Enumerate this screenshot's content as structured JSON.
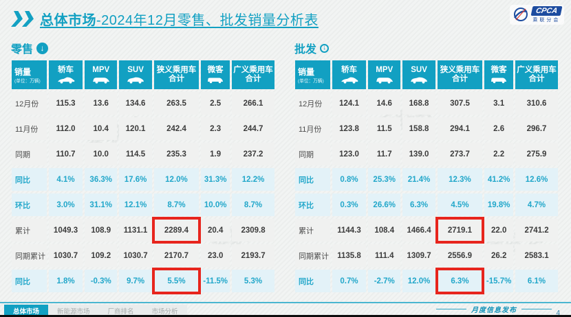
{
  "header": {
    "title_bold": "总体市场",
    "title_rest": "-2024年12月零售、批发销量分析表"
  },
  "logo": {
    "abbr": "CPCA",
    "cn": "乘联分会"
  },
  "icons": {
    "down_arrow": "↓"
  },
  "watermark": "乘联会",
  "columns": {
    "sales": {
      "label": "销量",
      "unit": "(单位：万辆)"
    },
    "cols": [
      {
        "line1": "轿车",
        "line2": "",
        "icon": "sedan-icon"
      },
      {
        "line1": "MPV",
        "line2": "",
        "icon": "mpv-icon"
      },
      {
        "line1": "SUV",
        "line2": "",
        "icon": "suv-icon"
      },
      {
        "line1": "狭义乘用车",
        "line2": "合计",
        "icon": ""
      },
      {
        "line1": "微客",
        "line2": "",
        "icon": "microvan-icon"
      },
      {
        "line1": "广义乘用车",
        "line2": "合计",
        "icon": ""
      }
    ]
  },
  "retail": {
    "section_label": "零售",
    "rows": [
      {
        "label": "12月份",
        "kind": "data",
        "values": [
          "115.3",
          "13.6",
          "134.6",
          "263.5",
          "2.5",
          "266.1"
        ]
      },
      {
        "label": "11月份",
        "kind": "data",
        "values": [
          "112.0",
          "10.4",
          "120.1",
          "242.4",
          "2.3",
          "244.7"
        ]
      },
      {
        "label": "同期",
        "kind": "data",
        "values": [
          "110.7",
          "10.0",
          "114.5",
          "235.3",
          "1.9",
          "237.2"
        ]
      },
      {
        "label": "同比",
        "kind": "pct",
        "values": [
          "4.1%",
          "36.3%",
          "17.6%",
          "12.0%",
          "31.3%",
          "12.2%"
        ]
      },
      {
        "label": "环比",
        "kind": "pct",
        "values": [
          "3.0%",
          "31.1%",
          "12.1%",
          "8.7%",
          "10.0%",
          "8.7%"
        ]
      },
      {
        "label": "累计",
        "kind": "data",
        "values": [
          "1049.3",
          "108.9",
          "1131.1",
          "2289.4",
          "20.4",
          "2309.8"
        ],
        "highlight": 3
      },
      {
        "label": "同期累计",
        "kind": "data",
        "values": [
          "1030.7",
          "109.2",
          "1030.7",
          "2170.7",
          "23.0",
          "2193.7"
        ]
      },
      {
        "label": "同比",
        "kind": "pct",
        "values": [
          "1.8%",
          "-0.3%",
          "9.7%",
          "5.5%",
          "-11.5%",
          "5.3%"
        ],
        "highlight": 3
      }
    ]
  },
  "wholesale": {
    "section_label": "批发",
    "rows": [
      {
        "label": "12月份",
        "kind": "data",
        "values": [
          "124.1",
          "14.6",
          "168.8",
          "307.5",
          "3.1",
          "310.6"
        ]
      },
      {
        "label": "11月份",
        "kind": "data",
        "values": [
          "123.8",
          "11.5",
          "158.8",
          "294.1",
          "2.6",
          "296.7"
        ]
      },
      {
        "label": "同期",
        "kind": "data",
        "values": [
          "123.0",
          "11.7",
          "139.0",
          "273.7",
          "2.2",
          "275.9"
        ]
      },
      {
        "label": "同比",
        "kind": "pct",
        "values": [
          "0.8%",
          "25.3%",
          "21.4%",
          "12.3%",
          "41.2%",
          "12.6%"
        ]
      },
      {
        "label": "环比",
        "kind": "pct",
        "values": [
          "0.3%",
          "26.6%",
          "6.3%",
          "4.5%",
          "19.8%",
          "4.7%"
        ]
      },
      {
        "label": "累计",
        "kind": "data",
        "values": [
          "1144.3",
          "108.4",
          "1466.4",
          "2719.1",
          "22.0",
          "2741.2"
        ],
        "highlight": 3
      },
      {
        "label": "同期累计",
        "kind": "data",
        "values": [
          "1135.8",
          "111.4",
          "1309.7",
          "2556.9",
          "26.2",
          "2583.1"
        ]
      },
      {
        "label": "同比",
        "kind": "pct",
        "values": [
          "0.7%",
          "-2.7%",
          "12.0%",
          "6.3%",
          "-15.7%",
          "6.1%"
        ],
        "highlight": 3
      }
    ]
  },
  "footer": {
    "tabs": [
      {
        "label": "总体市场",
        "active": true
      },
      {
        "label": "新能源市场",
        "active": false
      },
      {
        "label": "厂商排名",
        "active": false
      },
      {
        "label": "市场分析",
        "active": false
      }
    ],
    "note": "月度信息发布",
    "page": "4"
  }
}
